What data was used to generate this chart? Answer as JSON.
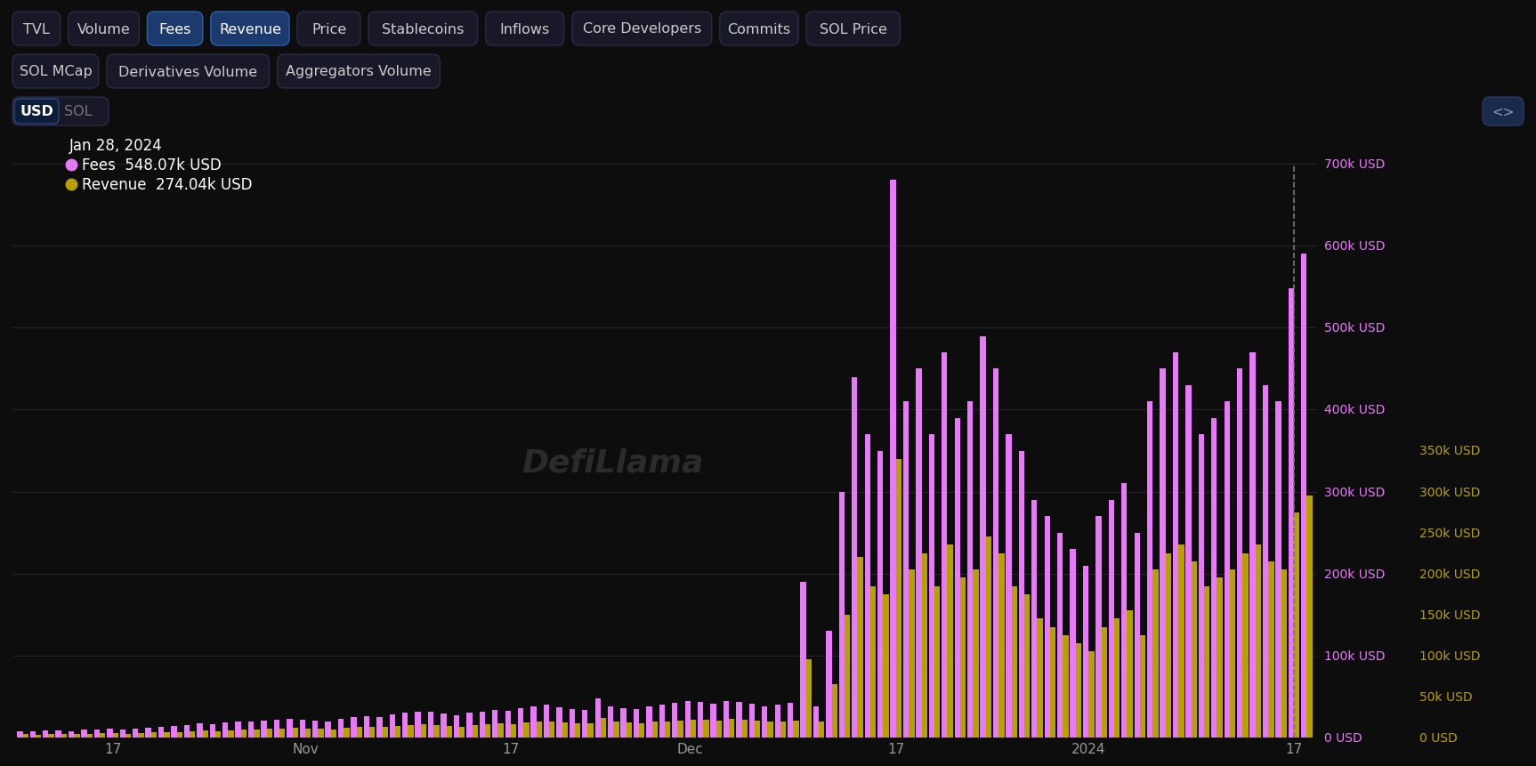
{
  "background_color": "#0d0d0d",
  "chart_bg": "#0d0d0d",
  "bar_color_fees": "#e879f9",
  "bar_color_revenue": "#b8a000",
  "grid_color": "#2a2a2a",
  "title_date": "Jan 28, 2024",
  "fees_label": "Fees  548.07k USD",
  "revenue_label": "Revenue  274.04k USD",
  "fees_dot_color": "#e879f9",
  "revenue_dot_color": "#b8a000",
  "left_yaxis_ticks": [
    "0 USD",
    "100k USD",
    "200k USD",
    "300k USD",
    "400k USD",
    "500k USD",
    "600k USD",
    "700k USD"
  ],
  "left_yaxis_color": "#e879f9",
  "right_yaxis_ticks": [
    "0 USD",
    "50k USD",
    "100k USD",
    "150k USD",
    "200k USD",
    "250k USD",
    "300k USD",
    "350k USD"
  ],
  "right_yaxis_color": "#b8a000",
  "ylim_left": [
    0,
    700000
  ],
  "ylim_right": [
    0,
    350000
  ],
  "dashed_line_color": "#777777",
  "fees_data": [
    8000,
    7500,
    8500,
    9000,
    8000,
    9500,
    10000,
    11000,
    9500,
    11000,
    12000,
    13000,
    14000,
    15000,
    17000,
    16000,
    18000,
    19000,
    20000,
    21000,
    22000,
    23000,
    22000,
    21000,
    20000,
    23000,
    25000,
    26000,
    25000,
    28000,
    30000,
    32000,
    31000,
    29000,
    27000,
    30000,
    32000,
    34000,
    33000,
    36000,
    38000,
    40000,
    37000,
    35000,
    34000,
    48000,
    38000,
    36000,
    35000,
    38000,
    40000,
    42000,
    44000,
    43000,
    41000,
    45000,
    43000,
    41000,
    38000,
    40000,
    42000,
    190000,
    38000,
    130000,
    300000,
    440000,
    370000,
    350000,
    680000,
    410000,
    450000,
    370000,
    470000,
    390000,
    410000,
    490000,
    450000,
    370000,
    350000,
    290000,
    270000,
    250000,
    230000,
    210000,
    270000,
    290000,
    310000,
    250000,
    410000,
    450000,
    470000,
    430000,
    370000,
    390000,
    410000,
    450000,
    470000,
    430000,
    410000,
    548070,
    590000
  ],
  "revenue_data": [
    4000,
    3750,
    4250,
    4500,
    4000,
    4750,
    5000,
    5500,
    4750,
    5500,
    6000,
    6500,
    7000,
    7500,
    8500,
    8000,
    9000,
    9500,
    10000,
    10500,
    11000,
    11500,
    11000,
    10500,
    10000,
    11500,
    12500,
    13000,
    12500,
    14000,
    15000,
    16000,
    15500,
    14500,
    13500,
    15000,
    16000,
    17000,
    16500,
    18000,
    19000,
    20000,
    18500,
    17500,
    17000,
    24000,
    19000,
    18000,
    17500,
    19000,
    20000,
    21000,
    22000,
    21500,
    20500,
    22500,
    21500,
    20500,
    19000,
    20000,
    21000,
    95000,
    19000,
    65000,
    150000,
    220000,
    185000,
    175000,
    340000,
    205000,
    225000,
    185000,
    235000,
    195000,
    205000,
    245000,
    225000,
    185000,
    175000,
    145000,
    135000,
    125000,
    115000,
    105000,
    135000,
    145000,
    155000,
    125000,
    205000,
    225000,
    235000,
    215000,
    185000,
    195000,
    205000,
    225000,
    235000,
    215000,
    205000,
    274040,
    295000
  ],
  "nav_buttons": [
    "TVL",
    "Volume",
    "Fees",
    "Revenue",
    "Price",
    "Stablecoins",
    "Inflows",
    "Core Developers",
    "Commits",
    "SOL Price"
  ],
  "nav_buttons2": [
    "SOL MCap",
    "Derivatives Volume",
    "Aggregators Volume"
  ],
  "active_buttons": [
    "Fees",
    "Revenue"
  ]
}
